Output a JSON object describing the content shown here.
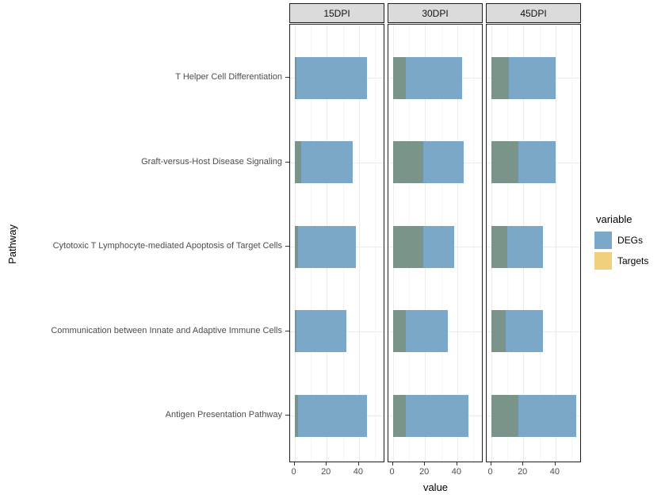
{
  "figure": {
    "xlabel": "value",
    "ylabel": "Pathway"
  },
  "legend": {
    "title": "variable",
    "entries": [
      {
        "label": "DEGs",
        "color": "#7ba7c9"
      },
      {
        "label": "Targets",
        "color": "#f0d07d"
      }
    ]
  },
  "chart_data": {
    "type": "bar",
    "orientation": "horizontal",
    "style": "overlaid-transparent-bars",
    "xlabel": "value",
    "ylabel": "Pathway",
    "x_ticks": [
      0,
      20,
      40
    ],
    "x_minor_ticks": [
      10,
      30,
      50
    ],
    "xlim": [
      0,
      56
    ],
    "grid": "on",
    "legend_position": "right",
    "legend_title": "variable",
    "categories": [
      "T Helper Cell Differentiation",
      "Graft-versus-Host Disease Signaling",
      "Cytotoxic T Lymphocyte-mediated Apoptosis of Target Cells",
      "Communication between Innate and Adaptive Immune Cells",
      "Antigen Presentation Pathway"
    ],
    "facet_labels": [
      "15DPI",
      "30DPI",
      "45DPI"
    ],
    "facets": [
      {
        "label": "15DPI",
        "series": [
          {
            "name": "DEGs",
            "values": [
              45,
              36,
              38,
              32,
              45
            ]
          },
          {
            "name": "Targets",
            "values": [
              1,
              4,
              2,
              1,
              2
            ]
          }
        ]
      },
      {
        "label": "30DPI",
        "series": [
          {
            "name": "DEGs",
            "values": [
              43,
              44,
              38,
              34,
              47
            ]
          },
          {
            "name": "Targets",
            "values": [
              8,
              19,
              19,
              8,
              8
            ]
          }
        ]
      },
      {
        "label": "45DPI",
        "series": [
          {
            "name": "DEGs",
            "values": [
              40,
              40,
              32,
              32,
              53
            ]
          },
          {
            "name": "Targets",
            "values": [
              11,
              17,
              10,
              9,
              17
            ]
          }
        ]
      }
    ],
    "colors": {
      "DEGs": "#7ba7c9",
      "Targets": "#f0d07d",
      "overlap": "#7a948a",
      "strip_fill": "#dbdbdb",
      "panel_border": "#1f1f1f",
      "grid_major": "#ebebeb",
      "grid_minor": "#f5f5f5",
      "axis_text": "#4d4d4d"
    }
  }
}
